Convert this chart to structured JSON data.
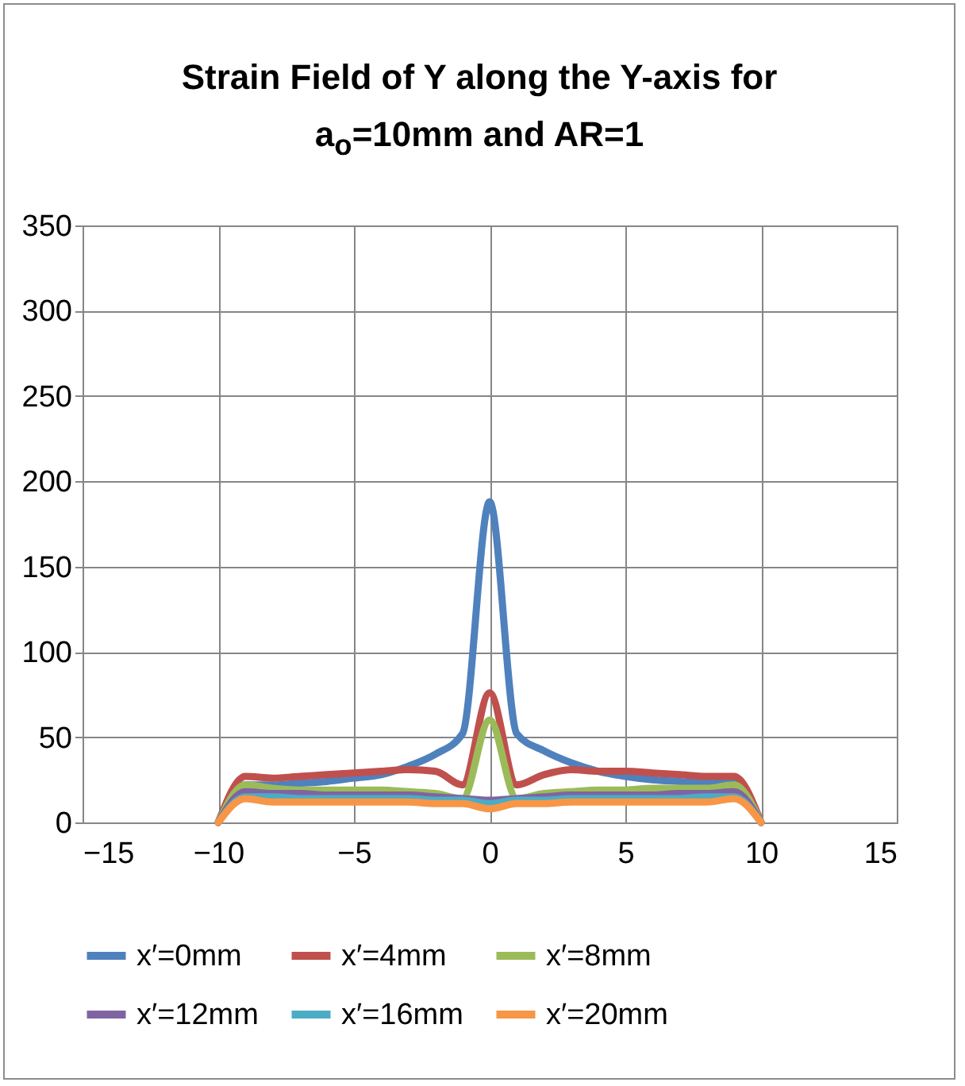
{
  "chart_data": {
    "type": "line",
    "title": "Strain Field of Y along the Y-axis for a$_{o}$=10mm and AR=1",
    "x": [
      -10,
      -9,
      -8,
      -7,
      -6,
      -5,
      -4,
      -3,
      -2,
      -1,
      0,
      1,
      2,
      3,
      4,
      5,
      6,
      7,
      8,
      9,
      10
    ],
    "series": [
      {
        "name": "x′=0mm",
        "color": "#4f81bd",
        "values": [
          0,
          22,
          22,
          23,
          24,
          26,
          28,
          33,
          40,
          52,
          188,
          52,
          42,
          35,
          30,
          27,
          25,
          24,
          23,
          24,
          0
        ]
      },
      {
        "name": "x′=4mm",
        "color": "#c0504d",
        "values": [
          0,
          27,
          26,
          27,
          28,
          29,
          30,
          31,
          30,
          22,
          76,
          22,
          28,
          31,
          30,
          30,
          29,
          28,
          27,
          27,
          0
        ]
      },
      {
        "name": "x′=8mm",
        "color": "#9bbb59",
        "values": [
          0,
          22,
          20,
          19,
          19,
          19,
          19,
          18,
          17,
          14,
          60,
          14,
          17,
          18,
          19,
          19,
          20,
          20,
          20,
          22,
          0
        ]
      },
      {
        "name": "x′=12mm",
        "color": "#8064a2",
        "values": [
          0,
          18,
          17,
          17,
          16,
          16,
          16,
          16,
          15,
          14,
          13,
          14,
          15,
          16,
          16,
          16,
          16,
          17,
          17,
          18,
          0
        ]
      },
      {
        "name": "x′=16mm",
        "color": "#4bacc6",
        "values": [
          0,
          15,
          15,
          14,
          14,
          14,
          14,
          14,
          13,
          13,
          11,
          13,
          13,
          14,
          14,
          14,
          14,
          14,
          15,
          15,
          0
        ]
      },
      {
        "name": "x′=20mm",
        "color": "#f79646",
        "values": [
          0,
          14,
          12,
          12,
          12,
          12,
          12,
          12,
          11,
          11,
          8,
          11,
          11,
          12,
          12,
          12,
          12,
          12,
          12,
          14,
          0
        ]
      }
    ],
    "xlim": [
      -15,
      15
    ],
    "xticks": [
      -15,
      -10,
      -5,
      0,
      5,
      10,
      15
    ],
    "ylim": [
      0,
      350
    ],
    "yticks": [
      0,
      50,
      100,
      150,
      200,
      250,
      300,
      350
    ],
    "grid": true,
    "legend": "bottom"
  }
}
